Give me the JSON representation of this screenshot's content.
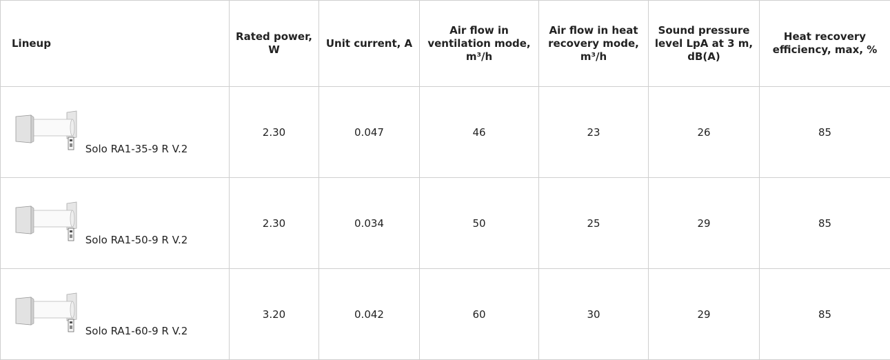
{
  "table": {
    "headers": [
      "Lineup",
      "Rated power, W",
      "Unit current, A",
      "Air flow in ventilation mode, m³/h",
      "Air flow in heat recovery mode, m³/h",
      "Sound pressure level LpA at 3 m, dB(A)",
      "Heat recovery efficiency, max, %"
    ],
    "rows": [
      [
        "Solo RA1-35-9 R V.2",
        "2.30",
        "0.047",
        "46",
        "23",
        "26",
        "85"
      ],
      [
        "Solo RA1-50-9 R V.2",
        "2.30",
        "0.034",
        "50",
        "25",
        "29",
        "85"
      ],
      [
        "Solo RA1-60-9 R V.2",
        "3.20",
        "0.042",
        "60",
        "30",
        "29",
        "85"
      ]
    ]
  }
}
